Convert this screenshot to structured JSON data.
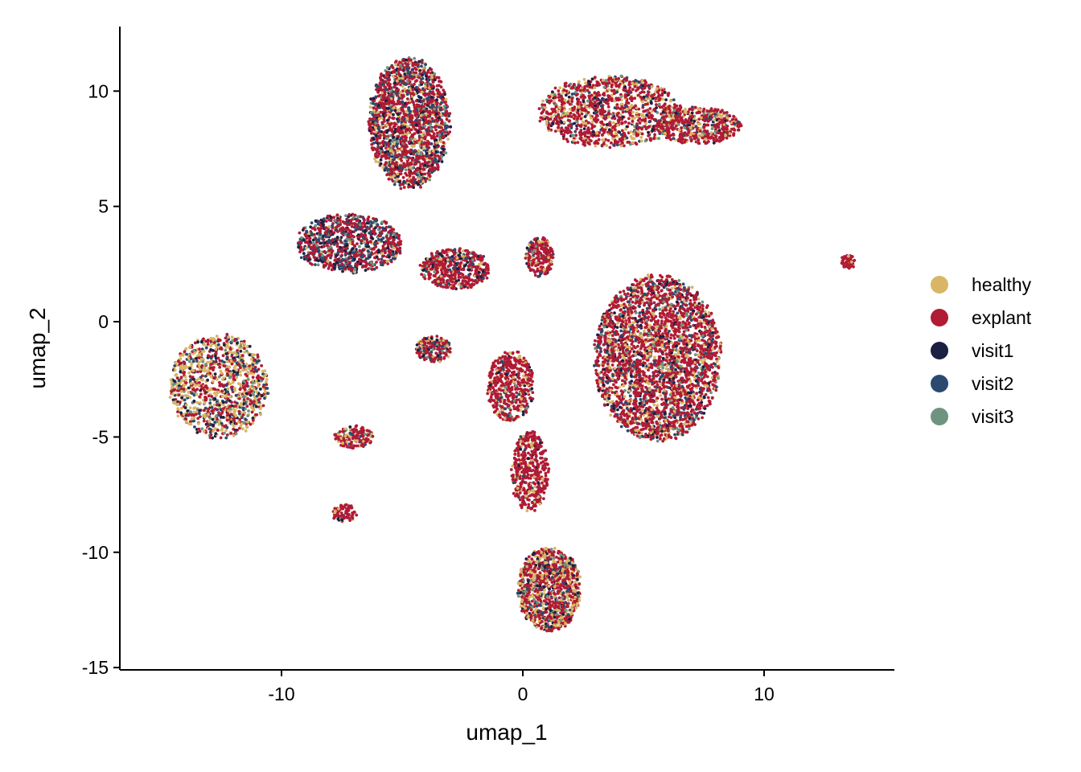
{
  "chart_data": {
    "type": "scatter",
    "title": "",
    "xlabel": "umap_1",
    "ylabel": "umap_2",
    "xlim": [
      -16.7,
      15.4
    ],
    "ylim": [
      -15.1,
      12.8
    ],
    "x_ticks": [
      -10,
      0,
      10
    ],
    "x_tick_labels": [
      "-10",
      "0",
      "10"
    ],
    "y_ticks": [
      -15,
      -10,
      -5,
      0,
      5,
      10
    ],
    "y_tick_labels": [
      "-15",
      "-10",
      "-5",
      "0",
      "5",
      "10"
    ],
    "grid": false,
    "legend_position": "right",
    "series": [
      {
        "name": "healthy",
        "color": "#D8B665"
      },
      {
        "name": "explant",
        "color": "#B11B34"
      },
      {
        "name": "visit1",
        "color": "#1B1F42"
      },
      {
        "name": "visit2",
        "color": "#2C4A6E"
      },
      {
        "name": "visit3",
        "color": "#6E9480"
      }
    ],
    "clusters": [
      {
        "cx": -4.7,
        "cy": 8.6,
        "rx": 1.75,
        "ry": 2.9,
        "n": 1800,
        "weights": {
          "healthy": 0.12,
          "explant": 0.55,
          "visit1": 0.12,
          "visit2": 0.14,
          "visit3": 0.07
        }
      },
      {
        "cx": 3.6,
        "cy": 9.1,
        "rx": 3.0,
        "ry": 1.6,
        "n": 1200,
        "weights": {
          "healthy": 0.2,
          "explant": 0.62,
          "visit1": 0.07,
          "visit2": 0.06,
          "visit3": 0.05
        }
      },
      {
        "cx": 7.3,
        "cy": 8.5,
        "rx": 1.8,
        "ry": 0.85,
        "n": 500,
        "weights": {
          "healthy": 0.2,
          "explant": 0.66,
          "visit1": 0.05,
          "visit2": 0.05,
          "visit3": 0.04
        }
      },
      {
        "cx": -7.2,
        "cy": 3.4,
        "rx": 2.3,
        "ry": 1.3,
        "n": 900,
        "weights": {
          "healthy": 0.05,
          "explant": 0.5,
          "visit1": 0.15,
          "visit2": 0.22,
          "visit3": 0.08
        }
      },
      {
        "cx": 5.6,
        "cy": -1.6,
        "rx": 2.7,
        "ry": 3.7,
        "n": 3000,
        "weights": {
          "healthy": 0.14,
          "explant": 0.64,
          "visit1": 0.08,
          "visit2": 0.09,
          "visit3": 0.05
        }
      },
      {
        "cx": -12.6,
        "cy": -2.8,
        "rx": 2.1,
        "ry": 2.3,
        "n": 1100,
        "weights": {
          "healthy": 0.38,
          "explant": 0.34,
          "visit1": 0.12,
          "visit2": 0.1,
          "visit3": 0.06
        }
      },
      {
        "cx": 1.1,
        "cy": -11.6,
        "rx": 1.35,
        "ry": 1.9,
        "n": 1100,
        "weights": {
          "healthy": 0.3,
          "explant": 0.46,
          "visit1": 0.1,
          "visit2": 0.09,
          "visit3": 0.05
        }
      },
      {
        "cx": 0.3,
        "cy": -6.5,
        "rx": 0.8,
        "ry": 1.8,
        "n": 450,
        "weights": {
          "healthy": 0.1,
          "explant": 0.8,
          "visit1": 0.04,
          "visit2": 0.04,
          "visit3": 0.02
        }
      },
      {
        "cx": -0.5,
        "cy": -2.8,
        "rx": 1.0,
        "ry": 1.6,
        "n": 500,
        "weights": {
          "healthy": 0.12,
          "explant": 0.76,
          "visit1": 0.05,
          "visit2": 0.04,
          "visit3": 0.03
        }
      },
      {
        "cx": -2.8,
        "cy": 2.3,
        "rx": 1.5,
        "ry": 0.9,
        "n": 500,
        "weights": {
          "healthy": 0.08,
          "explant": 0.7,
          "visit1": 0.08,
          "visit2": 0.1,
          "visit3": 0.04
        }
      },
      {
        "cx": -3.7,
        "cy": -1.2,
        "rx": 0.75,
        "ry": 0.6,
        "n": 200,
        "weights": {
          "healthy": 0.15,
          "explant": 0.55,
          "visit1": 0.12,
          "visit2": 0.12,
          "visit3": 0.06
        }
      },
      {
        "cx": 0.7,
        "cy": 2.8,
        "rx": 0.6,
        "ry": 0.9,
        "n": 220,
        "weights": {
          "healthy": 0.1,
          "explant": 0.76,
          "visit1": 0.05,
          "visit2": 0.06,
          "visit3": 0.03
        }
      },
      {
        "cx": -7.0,
        "cy": -5.0,
        "rx": 0.85,
        "ry": 0.5,
        "n": 150,
        "weights": {
          "healthy": 0.15,
          "explant": 0.7,
          "visit1": 0.06,
          "visit2": 0.06,
          "visit3": 0.03
        }
      },
      {
        "cx": -7.4,
        "cy": -8.3,
        "rx": 0.55,
        "ry": 0.4,
        "n": 80,
        "weights": {
          "healthy": 0.06,
          "explant": 0.9,
          "visit1": 0.02,
          "visit2": 0.01,
          "visit3": 0.01
        }
      },
      {
        "cx": 13.5,
        "cy": 2.6,
        "rx": 0.35,
        "ry": 0.3,
        "n": 60,
        "weights": {
          "healthy": 0.08,
          "explant": 0.9,
          "visit1": 0.01,
          "visit2": 0.01,
          "visit3": 0.0
        }
      }
    ]
  }
}
